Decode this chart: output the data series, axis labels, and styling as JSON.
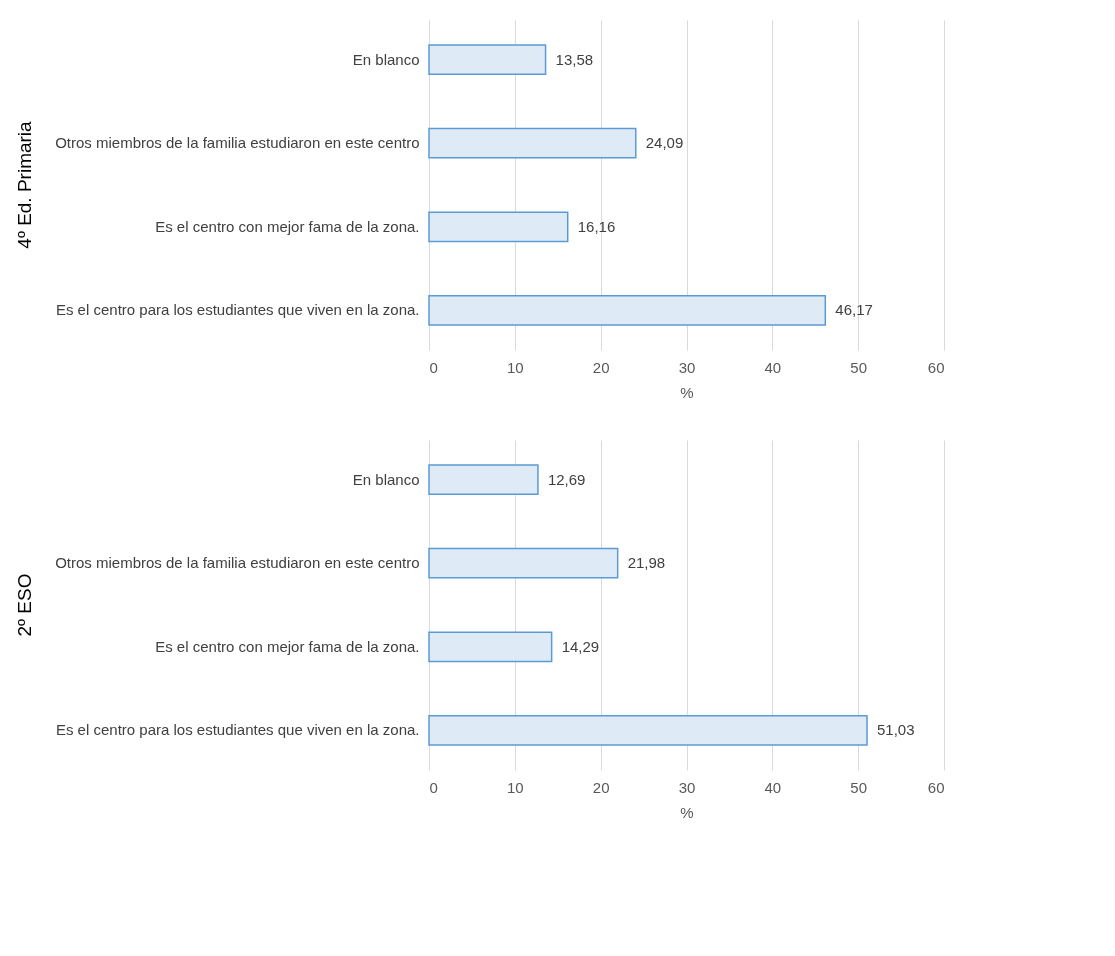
{
  "chart_data": [
    {
      "type": "bar",
      "orientation": "horizontal",
      "title": "4º Ed. Primaria",
      "xlabel": "%",
      "categories": [
        "En blanco",
        "Otros miembros de la familia estudiaron en este centro",
        "Es el centro con mejor fama de la zona.",
        "Es el centro para los estudiantes que viven en la zona."
      ],
      "values": [
        13.58,
        24.09,
        16.16,
        46.17
      ],
      "value_labels": [
        "13,58",
        "24,09",
        "16,16",
        "46,17"
      ],
      "color": "#deebf7",
      "xlim": [
        0,
        60
      ],
      "xticks": [
        0,
        10,
        20,
        30,
        40,
        50,
        60
      ],
      "grid": "x"
    },
    {
      "type": "bar",
      "orientation": "horizontal",
      "title": "2º ESO",
      "xlabel": "%",
      "categories": [
        "En blanco",
        "Otros miembros de la familia estudiaron en este centro",
        "Es el centro con mejor fama de la zona.",
        "Es el centro para los estudiantes que viven en la zona."
      ],
      "values": [
        12.69,
        21.98,
        14.29,
        51.03
      ],
      "value_labels": [
        "12,69",
        "21,98",
        "14,29",
        "51,03"
      ],
      "color": "#deebf7",
      "xlim": [
        0,
        60
      ],
      "xticks": [
        0,
        10,
        20,
        30,
        40,
        50,
        60
      ],
      "grid": "x"
    }
  ]
}
